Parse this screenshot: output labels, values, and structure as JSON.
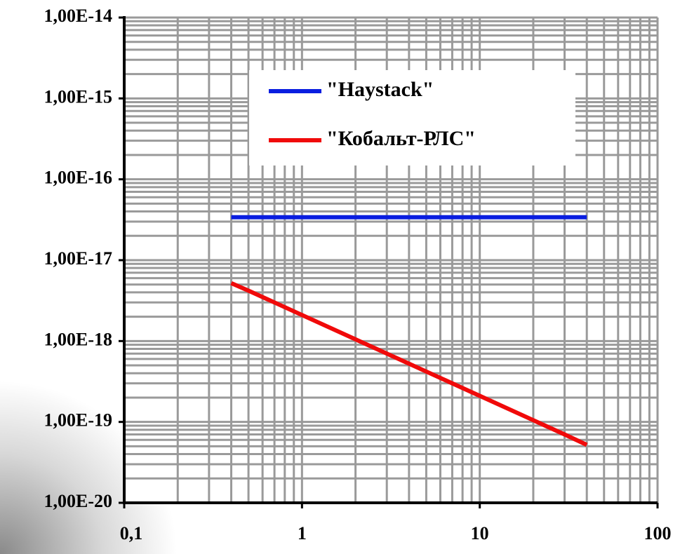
{
  "chart_data": {
    "type": "line",
    "xscale": "log",
    "yscale": "log",
    "grid": true,
    "minor_grid": true,
    "legend": "upper right",
    "xlim": [
      0.1,
      100
    ],
    "ylim": [
      1e-20,
      1e-14
    ],
    "xticks": [
      {
        "value": 0.1,
        "label": "0,1"
      },
      1,
      10,
      100
    ],
    "yticks": [
      {
        "value": 1e-20,
        "label": "1,00E-20"
      },
      {
        "value": 1e-19,
        "label": "1,00E-19"
      },
      {
        "value": 1e-18,
        "label": "1,00E-18"
      },
      {
        "value": 1e-17,
        "label": "1,00E-17"
      },
      {
        "value": 1e-16,
        "label": "1,00E-16"
      },
      {
        "value": 1e-15,
        "label": "1,00E-15"
      },
      {
        "value": 1e-14,
        "label": "1,00E-14"
      }
    ],
    "series": [
      {
        "name": "\"Haystack\"",
        "color": "#0a1ee0",
        "x": [
          0.4,
          40
        ],
        "values": [
          3.4e-17,
          3.4e-17
        ]
      },
      {
        "name": "\"Кобальт-РЛС\"",
        "color": "#f00a0a",
        "x": [
          0.4,
          0.5,
          0.7,
          1,
          2,
          3,
          5,
          7,
          10,
          20,
          30,
          40
        ],
        "values": [
          5.2e-18,
          4.2e-18,
          3e-18,
          2.1e-18,
          1.05e-18,
          7e-19,
          4.2e-19,
          3e-19,
          2.1e-19,
          1.05e-19,
          7e-20,
          5.2e-20
        ]
      }
    ]
  }
}
